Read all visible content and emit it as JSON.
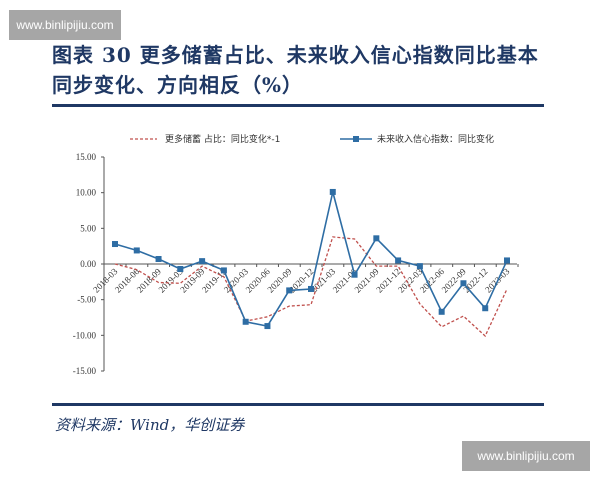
{
  "watermark": {
    "text": "www.binlipijiu.com"
  },
  "header": {
    "title_line1": "图表 30   更多储蓄占比、未来收入信心指数同比基本",
    "title_line2": "同步变化、方向相反（%）"
  },
  "footer": {
    "source": "资料来源：Wind，华创证券"
  },
  "colors": {
    "title": "#1f3864",
    "series_blue": "#2e6da4",
    "series_red": "#c0504d"
  },
  "chart_data": {
    "type": "line",
    "title": "更多储蓄占比、未来收入信心指数同比基本同步变化、方向相反（%）",
    "xlabel": "",
    "ylabel": "%",
    "ylim": [
      -15,
      15
    ],
    "yticks": [
      "15.00",
      "10.00",
      "5.00",
      "0.00",
      "-5.00",
      "-10.00",
      "-15.00"
    ],
    "grid": false,
    "legend_position": "top",
    "categories": [
      "2018-03",
      "2018-06",
      "2018-09",
      "2019-03",
      "2019-09",
      "2019-12",
      "2020-03",
      "2020-06",
      "2020-09",
      "2020-12",
      "2021-03",
      "2021-06",
      "2021-09",
      "2021-12",
      "2022-03",
      "2022-06",
      "2022-09",
      "2022-12",
      "2023-03"
    ],
    "series": [
      {
        "name": "更多储蓄 占比：同比变化*-1",
        "style": "dashed",
        "color": "#c0504d",
        "values": [
          0.0,
          -0.8,
          -2.6,
          -2.7,
          -0.3,
          -1.8,
          -8.0,
          -7.4,
          -5.9,
          -5.7,
          3.8,
          3.5,
          -0.3,
          -0.3,
          -5.6,
          -8.8,
          -7.3,
          -10.1,
          -3.5
        ]
      },
      {
        "name": "未来收入信心指数：同比变化",
        "style": "solid-square-markers",
        "color": "#2e6da4",
        "values": [
          2.8,
          1.9,
          0.7,
          -0.7,
          0.4,
          -0.9,
          -8.1,
          -8.7,
          -3.7,
          -3.5,
          10.1,
          -1.5,
          3.6,
          0.5,
          -0.3,
          -6.7,
          -2.7,
          -6.2,
          0.5
        ]
      }
    ]
  }
}
